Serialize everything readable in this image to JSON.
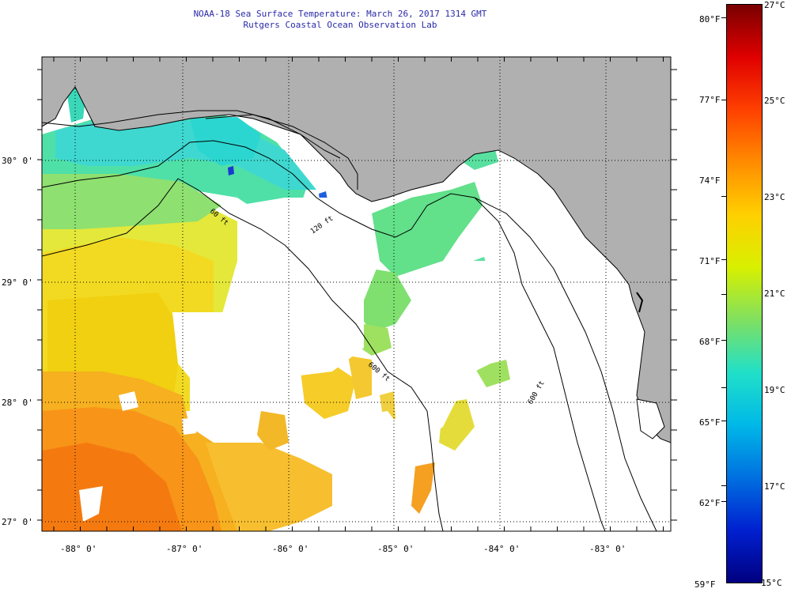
{
  "header": {
    "title": "NOAA-18 Sea Surface Temperature:  March 26, 2017 1314 GMT",
    "subtitle": "Rutgers Coastal Ocean Observation Lab"
  },
  "map": {
    "lat_labels": [
      "30° 0'",
      "29° 0'",
      "28° 0'",
      "27° 0'"
    ],
    "lon_labels": [
      "-88° 0'",
      "-87° 0'",
      "-86° 0'",
      "-85° 0'",
      "-84° 0'",
      "-83° 0'"
    ],
    "isobath_labels": [
      "60 ft",
      "120 ft",
      "600 ft",
      "600 ft"
    ],
    "land_color": "#b0b0b0",
    "cloud_color": "#ffffff"
  },
  "colorbar": {
    "fahrenheit_labels": [
      "80°F",
      "77°F",
      "74°F",
      "71°F",
      "68°F",
      "65°F",
      "62°F",
      "59°F"
    ],
    "celsius_labels": [
      "27°C",
      "25°C",
      "23°C",
      "21°C",
      "19°C",
      "17°C",
      "15°C"
    ],
    "stops": [
      "#7a0000",
      "#e00000",
      "#ff4000",
      "#ff8c00",
      "#ffd000",
      "#d8f000",
      "#80e060",
      "#20e0c8",
      "#00b8e8",
      "#0070e0",
      "#0020d0",
      "#000080"
    ]
  }
}
